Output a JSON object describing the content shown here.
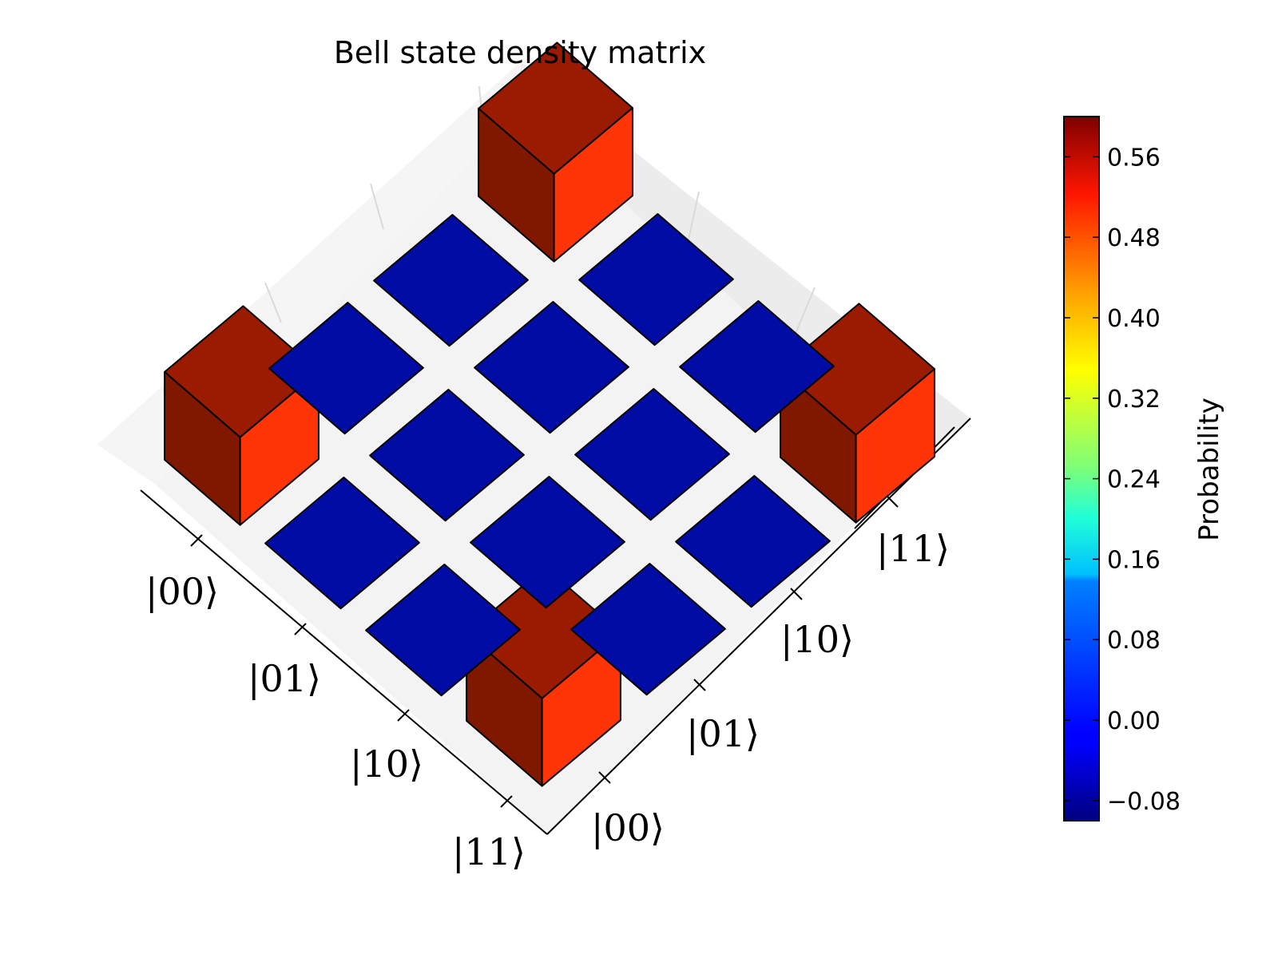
{
  "chart_data": {
    "type": "bar3d",
    "title": "Bell state density matrix",
    "row_labels": [
      "|00⟩",
      "|01⟩",
      "|10⟩",
      "|11⟩"
    ],
    "col_labels": [
      "|00⟩",
      "|01⟩",
      "|10⟩",
      "|11⟩"
    ],
    "values": [
      [
        0.5,
        0,
        0,
        0.5
      ],
      [
        0,
        0,
        0,
        0
      ],
      [
        0,
        0,
        0,
        0
      ],
      [
        0.5,
        0,
        0,
        0.5
      ]
    ],
    "colorbar": {
      "label": "Probability",
      "range": [
        -0.1,
        0.6
      ],
      "ticks": [
        -0.08,
        0.0,
        0.08,
        0.16,
        0.24,
        0.32,
        0.4,
        0.48,
        0.56
      ],
      "tick_labels": [
        "−0.08",
        "0.00",
        "0.08",
        "0.16",
        "0.24",
        "0.32",
        "0.40",
        "0.48",
        "0.56"
      ],
      "colormap": "jet"
    },
    "colors": {
      "bar_high_top": "#9b1b00",
      "bar_high_side_light": "#ff3508",
      "bar_high_side_dark": "#801800",
      "bar_zero_top": "#000ca3",
      "pane": "#f1f1f1",
      "edge": "#000000"
    }
  }
}
